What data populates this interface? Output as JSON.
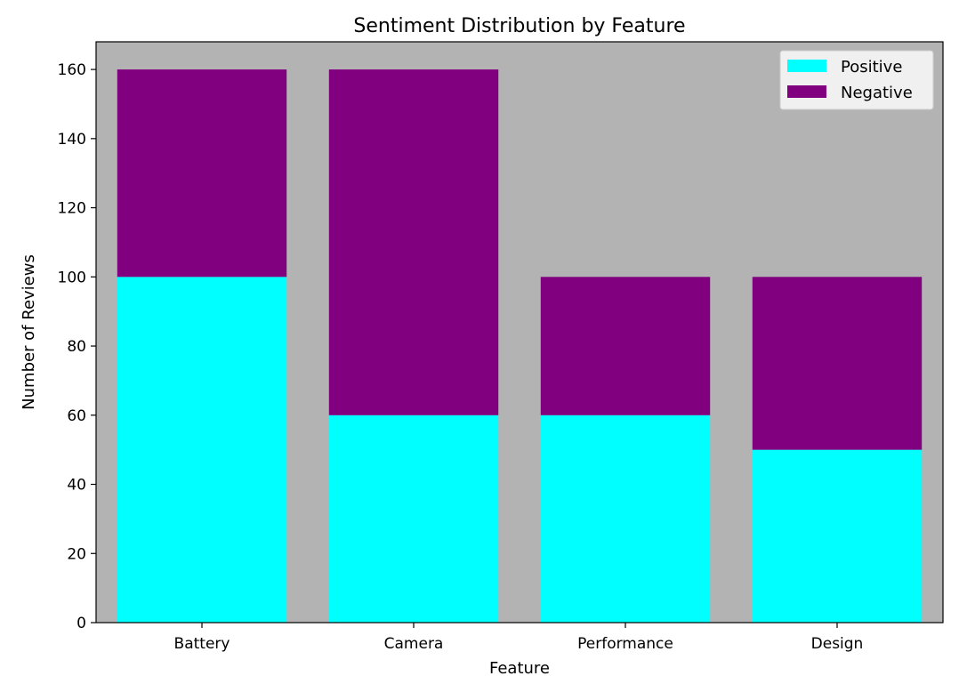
{
  "chart_data": {
    "type": "bar",
    "stacked": true,
    "title": "Sentiment Distribution by Feature",
    "xlabel": "Feature",
    "ylabel": "Number of Reviews",
    "categories": [
      "Battery",
      "Camera",
      "Performance",
      "Design"
    ],
    "series": [
      {
        "name": "Positive",
        "values": [
          100,
          60,
          60,
          50
        ],
        "color": "#00ffff"
      },
      {
        "name": "Negative",
        "values": [
          60,
          100,
          40,
          50
        ],
        "color": "#800080"
      }
    ],
    "ylim": [
      0,
      168
    ],
    "yticks": [
      0,
      20,
      40,
      60,
      80,
      100,
      120,
      140,
      160
    ],
    "grid": false,
    "legend_position": "top-right",
    "plot_background": "#b3b3b3"
  }
}
